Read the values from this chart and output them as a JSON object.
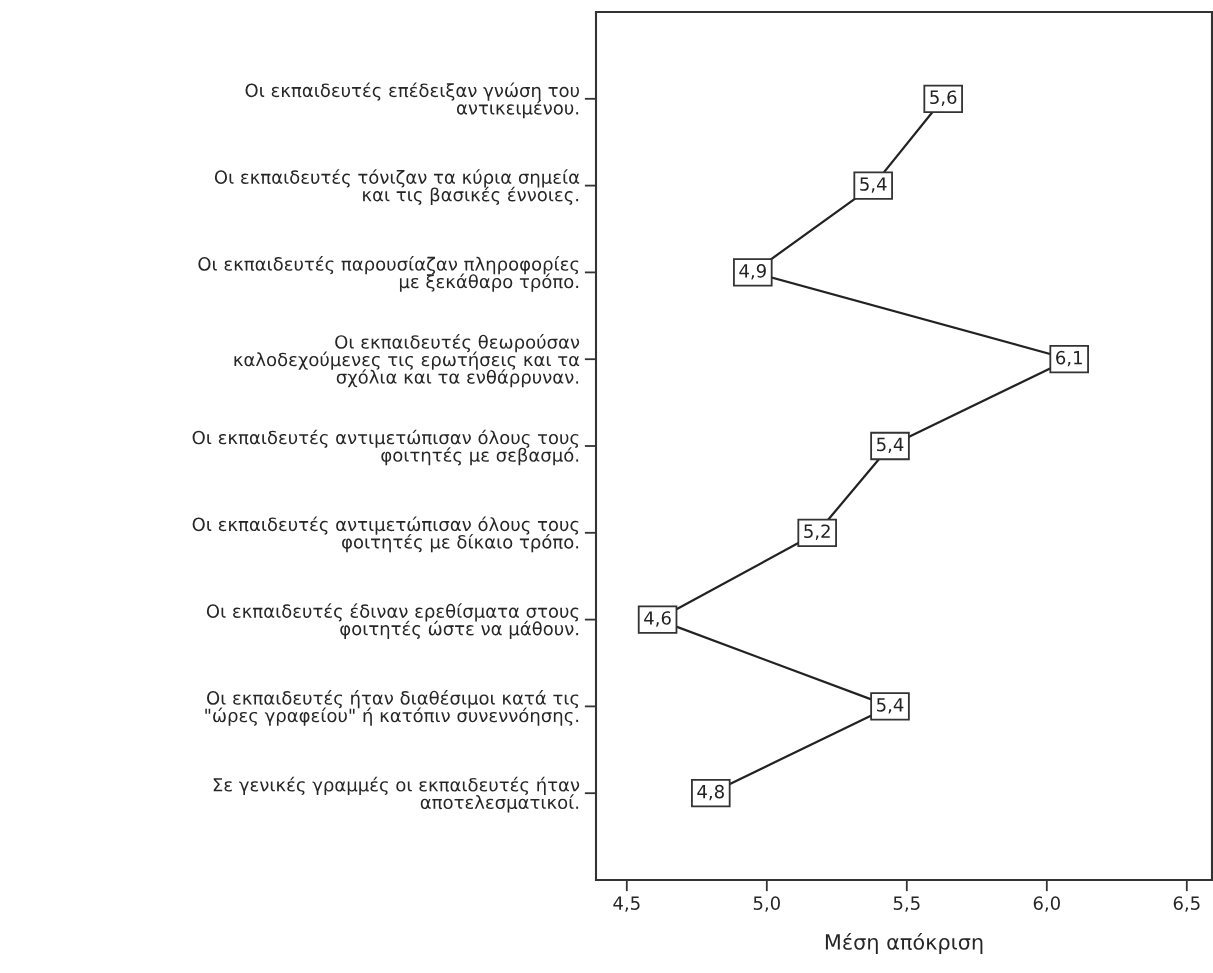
{
  "chart_data": {
    "type": "line",
    "orientation": "horizontal",
    "xlabel": "Μέση απόκριση",
    "categories": [
      "Οι εκπαιδευτές επέδειξαν γνώση του\nαντικειμένου.",
      "Οι εκπαιδευτές τόνιζαν τα κύρια σημεία\nκαι τις βασικές έννοιες.",
      "Οι εκπαιδευτές παρουσίαζαν πληροφορίες\nμε ξεκάθαρο τρόπο.",
      "Οι εκπαιδευτές θεωρούσαν\nκαλοδεχούμενες τις ερωτήσεις και τα\nσχόλια και τα ενθάρρυναν.",
      "Οι εκπαιδευτές αντιμετώπισαν όλους τους\nφοιτητές με σεβασμό.",
      "Οι εκπαιδευτές αντιμετώπισαν όλους τους\nφοιτητές με δίκαιο τρόπο.",
      "Οι εκπαιδευτές έδιναν ερεθίσματα στους\nφοιτητές ώστε να μάθουν.",
      "Οι εκπαιδευτές ήταν διαθέσιμοι κατά τις\n\"ώρες γραφείου\" ή κατόπιν συνεννόησης.",
      "Σε γενικές γραμμές οι εκπαιδευτές ήταν\nαποτελεσματικοί."
    ],
    "series": [
      {
        "color": "#222222",
        "values": [
          5.63,
          5.38,
          4.95,
          6.08,
          5.44,
          5.18,
          4.61,
          5.44,
          4.8
        ],
        "value_labels": [
          "5,6",
          "5,4",
          "4,9",
          "6,1",
          "5,4",
          "5,2",
          "4,6",
          "5,4",
          "4,8"
        ]
      }
    ],
    "xlim": [
      4.39,
      6.59
    ],
    "xticks": [
      {
        "value": 4.5,
        "label": "4,5"
      },
      {
        "value": 5.0,
        "label": "5,0"
      },
      {
        "value": 5.5,
        "label": "5,5"
      },
      {
        "value": 6.0,
        "label": "6,0"
      },
      {
        "value": 6.5,
        "label": "6,5"
      }
    ],
    "grid": false,
    "legend": false,
    "marker": "square",
    "line_style": "solid"
  }
}
